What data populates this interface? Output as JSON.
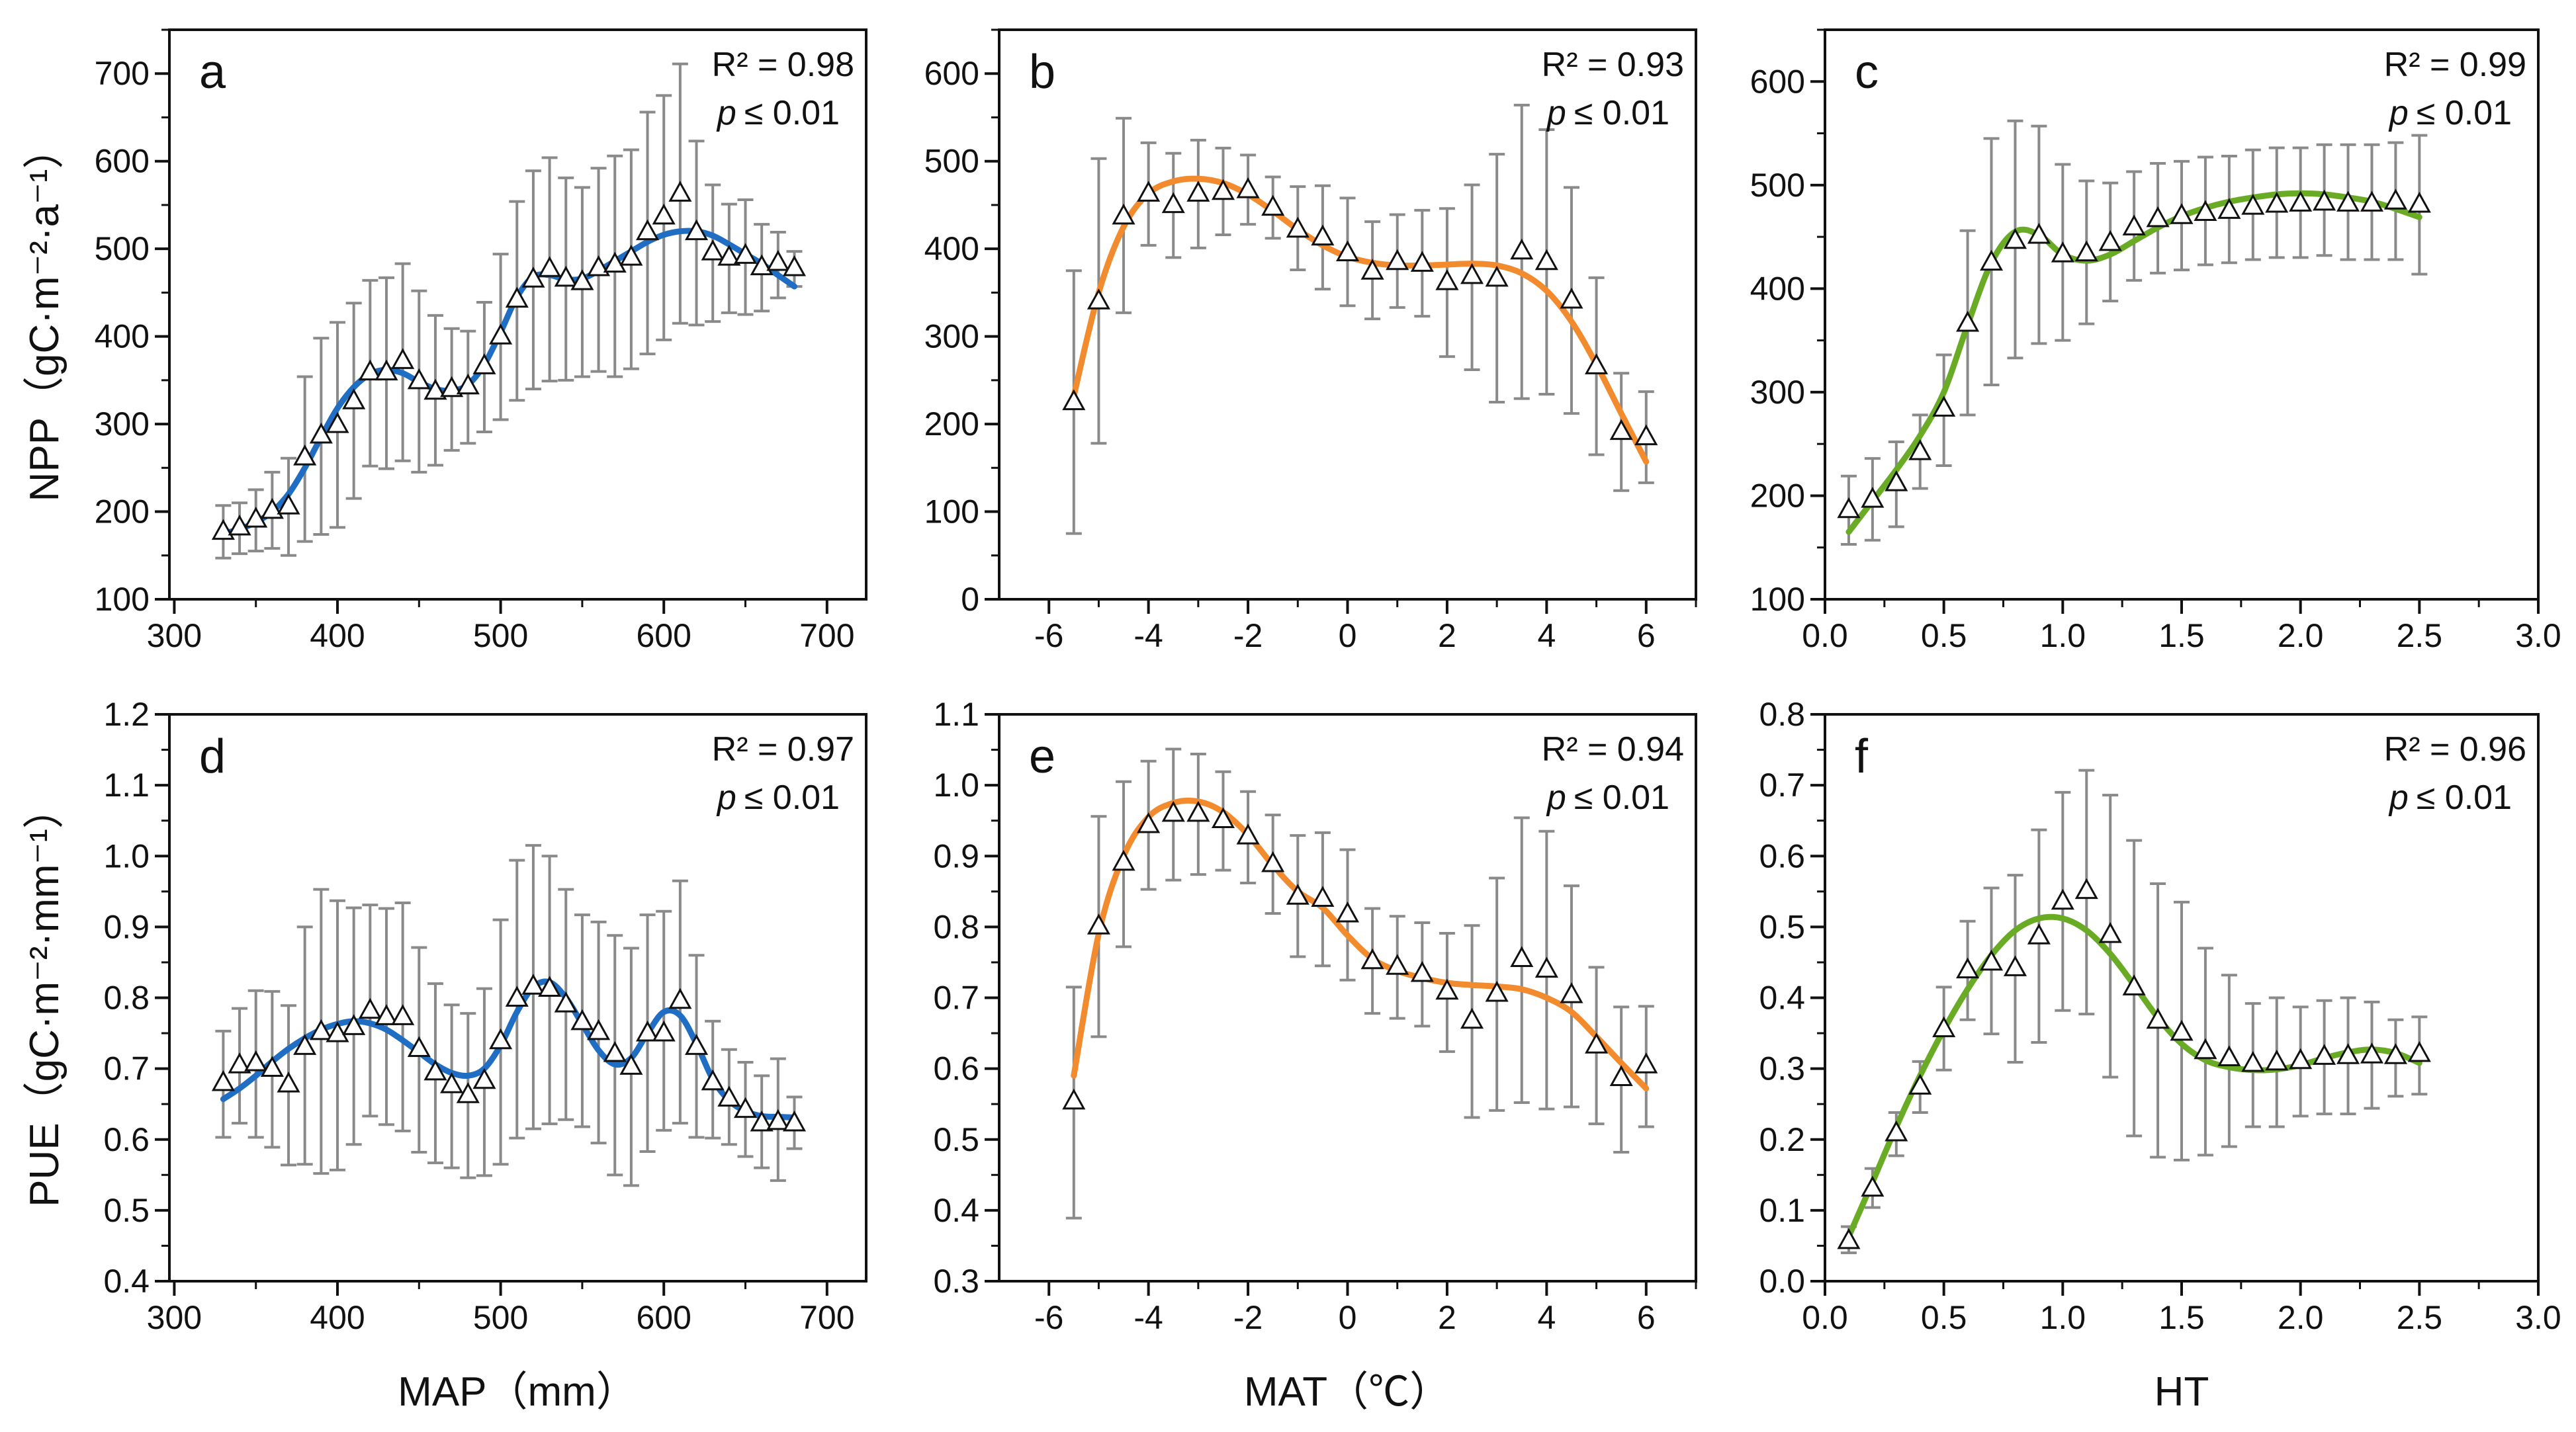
{
  "figure": {
    "row_titles": {
      "npp_ylabel": "NPP（gC·m⁻²·a⁻¹）",
      "pue_ylabel": "PUE（gC·m⁻²·mm⁻¹）"
    },
    "col_titles": {
      "map_xlabel": "MAP（mm）",
      "mat_xlabel": "MAT（℃）",
      "ht_xlabel": "HT"
    },
    "colors": {
      "MAP": "#1f6ec4",
      "MAT": "#f28a2e",
      "HT": "#6aab26",
      "errorbar": "#8a8a8a"
    }
  },
  "chart_data": [
    {
      "id": "a",
      "letter": "a",
      "type": "scatter",
      "r2": "R² = 0.98",
      "p_symbol": "p",
      "p_value": "≤ 0.01",
      "xlabel": "",
      "ylabel": "NPP（gC·m⁻²·a⁻¹）",
      "xlim": [
        297,
        724
      ],
      "ylim": [
        100,
        750
      ],
      "xticks": [
        300,
        400,
        500,
        600,
        700
      ],
      "xtick_labels": [
        "300",
        "400",
        "500",
        "600",
        "700"
      ],
      "xminor": 50,
      "yticks": [
        100,
        200,
        300,
        400,
        500,
        600,
        700
      ],
      "ytick_labels": [
        "100",
        "200",
        "300",
        "400",
        "500",
        "600",
        "700"
      ],
      "yminor": 50,
      "color": "#1f6ec4",
      "x": [
        330,
        340,
        350,
        360,
        370,
        380,
        390,
        400,
        410,
        420,
        430,
        440,
        450,
        460,
        470,
        480,
        490,
        500,
        510,
        520,
        530,
        540,
        550,
        560,
        570,
        580,
        590,
        600,
        610,
        620,
        630,
        640,
        650,
        660,
        670,
        680
      ],
      "y": [
        178,
        183,
        192,
        202,
        207,
        263,
        288,
        300,
        327,
        360,
        360,
        373,
        350,
        338,
        341,
        344,
        367,
        401,
        443,
        466,
        478,
        467,
        463,
        479,
        483,
        491,
        520,
        538,
        564,
        520,
        497,
        491,
        493,
        480,
        485,
        479
      ],
      "err_hi": [
        207,
        210,
        225,
        245,
        261,
        354,
        398,
        416,
        438,
        464,
        467,
        483,
        452,
        424,
        409,
        406,
        439,
        494,
        554,
        589,
        604,
        581,
        570,
        592,
        606,
        613,
        656,
        675,
        711,
        623,
        573,
        551,
        556,
        528,
        519,
        497
      ],
      "err_lo": [
        147,
        152,
        155,
        158,
        150,
        166,
        174,
        182,
        215,
        252,
        249,
        258,
        245,
        253,
        270,
        278,
        291,
        305,
        327,
        340,
        349,
        350,
        354,
        360,
        354,
        363,
        380,
        396,
        415,
        413,
        417,
        427,
        425,
        429,
        444,
        457
      ],
      "fit_y": [
        175,
        180,
        188,
        200,
        220,
        250,
        285,
        318,
        342,
        357,
        362,
        358,
        348,
        340,
        338,
        345,
        368,
        405,
        445,
        468,
        470,
        465,
        466,
        475,
        486,
        497,
        508,
        516,
        520,
        520,
        515,
        505,
        494,
        483,
        470,
        457
      ]
    },
    {
      "id": "b",
      "letter": "b",
      "type": "scatter",
      "r2": "R² = 0.93",
      "p_symbol": "p",
      "p_value": "≤ 0.01",
      "xlabel": "",
      "ylabel": "",
      "xlim": [
        -7,
        7
      ],
      "ylim": [
        0,
        650
      ],
      "xticks": [
        -6,
        -4,
        -2,
        0,
        2,
        4,
        6
      ],
      "xtick_labels": [
        "-6",
        "-4",
        "-2",
        "0",
        "2",
        "4",
        "6"
      ],
      "xminor": 1,
      "yticks": [
        0,
        100,
        200,
        300,
        400,
        500,
        600
      ],
      "ytick_labels": [
        "0",
        "100",
        "200",
        "300",
        "400",
        "500",
        "600"
      ],
      "yminor": 50,
      "color": "#f28a2e",
      "x": [
        -5.5,
        -5,
        -4.5,
        -4,
        -3.5,
        -3,
        -2.5,
        -2,
        -1.5,
        -1,
        -0.5,
        0,
        0.5,
        1,
        1.5,
        2,
        2.5,
        3,
        3.5,
        4,
        4.5,
        5,
        5.5,
        6
      ],
      "y": [
        226,
        341,
        438,
        464,
        451,
        464,
        466,
        468,
        448,
        423,
        414,
        396,
        375,
        386,
        384,
        363,
        370,
        367,
        398,
        386,
        342,
        267,
        192,
        186
      ],
      "err_hi": [
        375,
        503,
        549,
        521,
        509,
        524,
        515,
        507,
        482,
        471,
        472,
        458,
        431,
        439,
        444,
        446,
        473,
        508,
        564,
        536,
        470,
        367,
        258,
        237
      ],
      "err_lo": [
        75,
        178,
        327,
        404,
        390,
        401,
        416,
        428,
        412,
        376,
        354,
        335,
        320,
        333,
        323,
        277,
        262,
        225,
        229,
        234,
        212,
        165,
        124,
        133
      ],
      "fit_y": [
        232,
        350,
        425,
        463,
        477,
        480,
        475,
        462,
        443,
        422,
        404,
        391,
        384,
        381,
        381,
        382,
        383,
        381,
        372,
        352,
        317,
        268,
        212,
        157
      ]
    },
    {
      "id": "c",
      "letter": "c",
      "type": "scatter",
      "r2": "R² = 0.99",
      "p_symbol": "p",
      "p_value": "≤ 0.01",
      "xlabel": "",
      "ylabel": "",
      "xlim": [
        0,
        3
      ],
      "ylim": [
        100,
        650
      ],
      "xticks": [
        0,
        0.5,
        1,
        1.5,
        2,
        2.5,
        3
      ],
      "xtick_labels": [
        "0.0",
        "0.5",
        "1.0",
        "1.5",
        "2.0",
        "2.5",
        "3.0"
      ],
      "xminor": 0.25,
      "yticks": [
        100,
        200,
        300,
        400,
        500,
        600
      ],
      "ytick_labels": [
        "100",
        "200",
        "300",
        "400",
        "500",
        "600"
      ],
      "yminor": 50,
      "color": "#6aab26",
      "x": [
        0.1,
        0.2,
        0.3,
        0.4,
        0.5,
        0.6,
        0.7,
        0.8,
        0.9,
        1.0,
        1.1,
        1.2,
        1.3,
        1.4,
        1.5,
        1.6,
        1.7,
        1.8,
        1.9,
        2.0,
        2.1,
        2.2,
        2.3,
        2.4,
        2.5
      ],
      "y": [
        187,
        197,
        213,
        243,
        285,
        367,
        426,
        447,
        452,
        434,
        435,
        445,
        460,
        468,
        471,
        474,
        476,
        480,
        482,
        483,
        484,
        483,
        483,
        485,
        482
      ],
      "err_hi": [
        219,
        236,
        252,
        278,
        336,
        456,
        545,
        562,
        557,
        520,
        504,
        502,
        513,
        521,
        523,
        527,
        528,
        534,
        536,
        536,
        539,
        539,
        539,
        541,
        548
      ],
      "err_lo": [
        153,
        157,
        170,
        207,
        229,
        278,
        307,
        333,
        347,
        350,
        366,
        388,
        408,
        415,
        418,
        423,
        425,
        428,
        430,
        430,
        432,
        428,
        428,
        428,
        414
      ],
      "fit_y": [
        165,
        195,
        225,
        258,
        300,
        365,
        425,
        455,
        452,
        433,
        427,
        433,
        446,
        459,
        470,
        478,
        484,
        488,
        491,
        492,
        491,
        488,
        484,
        477,
        469
      ]
    },
    {
      "id": "d",
      "letter": "d",
      "type": "scatter",
      "r2": "R² = 0.97",
      "p_symbol": "p",
      "p_value": "≤ 0.01",
      "xlabel": "MAP（mm）",
      "ylabel": "PUE（gC·m⁻²·mm⁻¹）",
      "xlim": [
        297,
        724
      ],
      "ylim": [
        0.4,
        1.2
      ],
      "xticks": [
        300,
        400,
        500,
        600,
        700
      ],
      "xtick_labels": [
        "300",
        "400",
        "500",
        "600",
        "700"
      ],
      "xminor": 50,
      "yticks": [
        0.4,
        0.5,
        0.6,
        0.7,
        0.8,
        0.9,
        1.0,
        1.1,
        1.2
      ],
      "ytick_labels": [
        "0.4",
        "0.5",
        "0.6",
        "0.7",
        "0.8",
        "0.9",
        "1.0",
        "1.1",
        "1.2"
      ],
      "yminor": 0.05,
      "color": "#1f6ec4",
      "x": [
        330,
        340,
        350,
        360,
        370,
        380,
        390,
        400,
        410,
        420,
        430,
        440,
        450,
        460,
        470,
        480,
        490,
        500,
        510,
        520,
        530,
        540,
        550,
        560,
        570,
        580,
        590,
        600,
        610,
        620,
        630,
        640,
        650,
        660,
        670,
        680
      ],
      "y": [
        0.681,
        0.706,
        0.709,
        0.701,
        0.679,
        0.732,
        0.753,
        0.75,
        0.76,
        0.783,
        0.774,
        0.774,
        0.729,
        0.696,
        0.678,
        0.664,
        0.684,
        0.74,
        0.8,
        0.817,
        0.814,
        0.792,
        0.767,
        0.753,
        0.722,
        0.704,
        0.751,
        0.751,
        0.797,
        0.732,
        0.682,
        0.659,
        0.643,
        0.624,
        0.626,
        0.624
      ],
      "err_hi": [
        0.753,
        0.785,
        0.81,
        0.809,
        0.789,
        0.9,
        0.953,
        0.937,
        0.927,
        0.931,
        0.926,
        0.934,
        0.871,
        0.82,
        0.79,
        0.778,
        0.813,
        0.91,
        0.994,
        1.015,
        1.0,
        0.953,
        0.917,
        0.907,
        0.888,
        0.87,
        0.917,
        0.922,
        0.965,
        0.86,
        0.767,
        0.727,
        0.709,
        0.69,
        0.714,
        0.66
      ],
      "err_lo": [
        0.603,
        0.623,
        0.603,
        0.589,
        0.564,
        0.565,
        0.552,
        0.557,
        0.593,
        0.633,
        0.621,
        0.612,
        0.582,
        0.567,
        0.56,
        0.546,
        0.549,
        0.565,
        0.602,
        0.615,
        0.622,
        0.628,
        0.618,
        0.595,
        0.55,
        0.535,
        0.583,
        0.613,
        0.623,
        0.603,
        0.602,
        0.593,
        0.576,
        0.56,
        0.542,
        0.587
      ],
      "fit_y": [
        0.657,
        0.672,
        0.69,
        0.71,
        0.728,
        0.743,
        0.755,
        0.763,
        0.767,
        0.764,
        0.755,
        0.74,
        0.723,
        0.706,
        0.694,
        0.69,
        0.7,
        0.733,
        0.78,
        0.815,
        0.822,
        0.8,
        0.763,
        0.726,
        0.706,
        0.715,
        0.75,
        0.78,
        0.775,
        0.735,
        0.685,
        0.655,
        0.64,
        0.633,
        0.632,
        0.631
      ]
    },
    {
      "id": "e",
      "letter": "e",
      "type": "scatter",
      "r2": "R² = 0.94",
      "p_symbol": "p",
      "p_value": "≤ 0.01",
      "xlabel": "MAT（℃）",
      "ylabel": "",
      "xlim": [
        -7,
        7
      ],
      "ylim": [
        0.3,
        1.1
      ],
      "xticks": [
        -6,
        -4,
        -2,
        0,
        2,
        4,
        6
      ],
      "xtick_labels": [
        "-6",
        "-4",
        "-2",
        "0",
        "2",
        "4",
        "6"
      ],
      "xminor": 1,
      "yticks": [
        0.3,
        0.4,
        0.5,
        0.6,
        0.7,
        0.8,
        0.9,
        1.0,
        1.1
      ],
      "ytick_labels": [
        "0.3",
        "0.4",
        "0.5",
        "0.6",
        "0.7",
        "0.8",
        "0.9",
        "1.0",
        "1.1"
      ],
      "yminor": 0.05,
      "color": "#f28a2e",
      "x": [
        -5.5,
        -5,
        -4.5,
        -4,
        -3.5,
        -3,
        -2.5,
        -2,
        -1.5,
        -1,
        -0.5,
        0,
        0.5,
        1,
        1.5,
        2,
        2.5,
        3,
        3.5,
        4,
        4.5,
        5,
        5.5,
        6
      ],
      "y": [
        0.555,
        0.802,
        0.892,
        0.945,
        0.961,
        0.961,
        0.952,
        0.929,
        0.89,
        0.844,
        0.841,
        0.819,
        0.753,
        0.745,
        0.735,
        0.71,
        0.669,
        0.707,
        0.756,
        0.741,
        0.705,
        0.634,
        0.588,
        0.606
      ],
      "err_hi": [
        0.715,
        0.956,
        1.005,
        1.034,
        1.051,
        1.044,
        1.019,
        0.991,
        0.958,
        0.929,
        0.933,
        0.909,
        0.826,
        0.815,
        0.806,
        0.791,
        0.802,
        0.869,
        0.954,
        0.935,
        0.858,
        0.743,
        0.687,
        0.688
      ],
      "err_lo": [
        0.389,
        0.645,
        0.772,
        0.853,
        0.866,
        0.874,
        0.88,
        0.862,
        0.819,
        0.758,
        0.745,
        0.725,
        0.678,
        0.671,
        0.66,
        0.624,
        0.531,
        0.541,
        0.552,
        0.543,
        0.546,
        0.522,
        0.482,
        0.518
      ],
      "fit_y": [
        0.59,
        0.79,
        0.9,
        0.955,
        0.975,
        0.977,
        0.962,
        0.93,
        0.887,
        0.85,
        0.827,
        0.788,
        0.755,
        0.738,
        0.728,
        0.721,
        0.718,
        0.716,
        0.712,
        0.7,
        0.68,
        0.645,
        0.608,
        0.572
      ]
    },
    {
      "id": "f",
      "letter": "f",
      "type": "scatter",
      "r2": "R² = 0.96",
      "p_symbol": "p",
      "p_value": "≤ 0.01",
      "xlabel": "HT",
      "ylabel": "",
      "xlim": [
        0,
        3
      ],
      "ylim": [
        0,
        0.8
      ],
      "xticks": [
        0,
        0.5,
        1,
        1.5,
        2,
        2.5,
        3
      ],
      "xtick_labels": [
        "0.0",
        "0.5",
        "1.0",
        "1.5",
        "2.0",
        "2.5",
        "3.0"
      ],
      "xminor": 0.25,
      "yticks": [
        0,
        0.1,
        0.2,
        0.3,
        0.4,
        0.5,
        0.6,
        0.7,
        0.8
      ],
      "ytick_labels": [
        "0.0",
        "0.1",
        "0.2",
        "0.3",
        "0.4",
        "0.5",
        "0.6",
        "0.7",
        "0.8"
      ],
      "yminor": 0.05,
      "color": "#6aab26",
      "x": [
        0.1,
        0.2,
        0.3,
        0.4,
        0.5,
        0.6,
        0.7,
        0.8,
        0.9,
        1.0,
        1.1,
        1.2,
        1.3,
        1.4,
        1.5,
        1.6,
        1.7,
        1.8,
        1.9,
        2.0,
        2.1,
        2.2,
        2.3,
        2.4,
        2.5
      ],
      "y": [
        0.058,
        0.132,
        0.21,
        0.276,
        0.357,
        0.44,
        0.451,
        0.443,
        0.488,
        0.537,
        0.552,
        0.49,
        0.416,
        0.369,
        0.352,
        0.326,
        0.316,
        0.308,
        0.31,
        0.312,
        0.318,
        0.319,
        0.32,
        0.319,
        0.322
      ],
      "err_hi": [
        0.077,
        0.159,
        0.238,
        0.31,
        0.415,
        0.508,
        0.555,
        0.573,
        0.637,
        0.69,
        0.721,
        0.686,
        0.622,
        0.561,
        0.535,
        0.47,
        0.432,
        0.392,
        0.4,
        0.387,
        0.396,
        0.4,
        0.394,
        0.369,
        0.373
      ],
      "err_lo": [
        0.04,
        0.104,
        0.177,
        0.238,
        0.298,
        0.369,
        0.349,
        0.309,
        0.337,
        0.382,
        0.377,
        0.288,
        0.205,
        0.175,
        0.171,
        0.178,
        0.19,
        0.218,
        0.218,
        0.233,
        0.236,
        0.236,
        0.244,
        0.261,
        0.264
      ],
      "fit_y": [
        0.063,
        0.14,
        0.218,
        0.29,
        0.355,
        0.412,
        0.46,
        0.495,
        0.512,
        0.512,
        0.495,
        0.462,
        0.418,
        0.372,
        0.335,
        0.312,
        0.302,
        0.298,
        0.299,
        0.305,
        0.315,
        0.323,
        0.327,
        0.322,
        0.308
      ]
    }
  ]
}
